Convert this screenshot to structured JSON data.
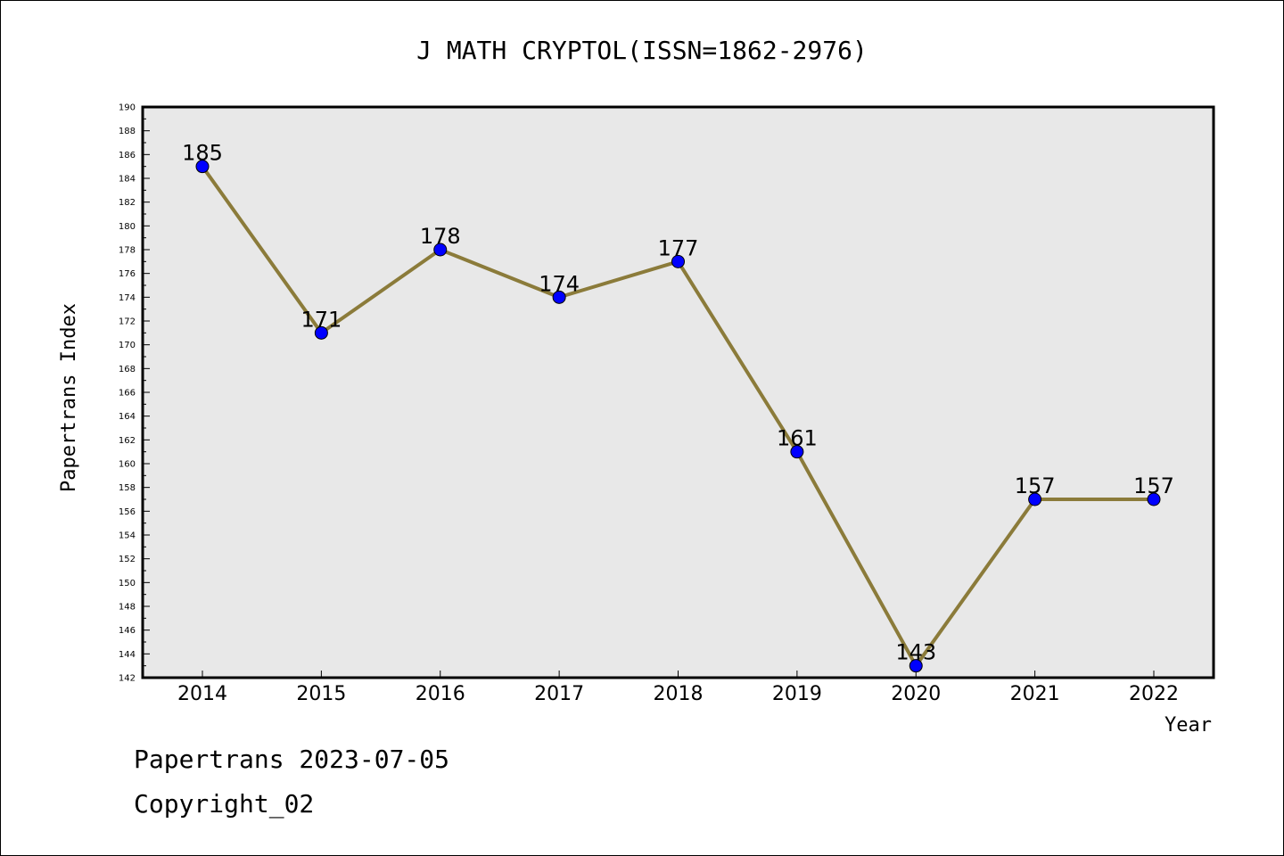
{
  "chart_data": {
    "type": "line",
    "title": "J MATH CRYPTOL(ISSN=1862-2976)",
    "xlabel": "Year",
    "ylabel": "Papertrans Index",
    "x": [
      "2014",
      "2015",
      "2016",
      "2017",
      "2018",
      "2019",
      "2020",
      "2021",
      "2022"
    ],
    "series": [
      {
        "values": [
          185,
          171,
          178,
          174,
          177,
          161,
          143,
          157,
          157
        ]
      }
    ],
    "ylim": [
      142,
      190
    ],
    "ytick_step": 2,
    "grid": false,
    "legend": "none",
    "colors": {
      "line": "#8B7B3A",
      "marker": "#0000FF",
      "plot_background": "#E8E8E8"
    }
  },
  "footer": {
    "line1": "Papertrans 2023-07-05",
    "line2": "Copyright_02"
  }
}
